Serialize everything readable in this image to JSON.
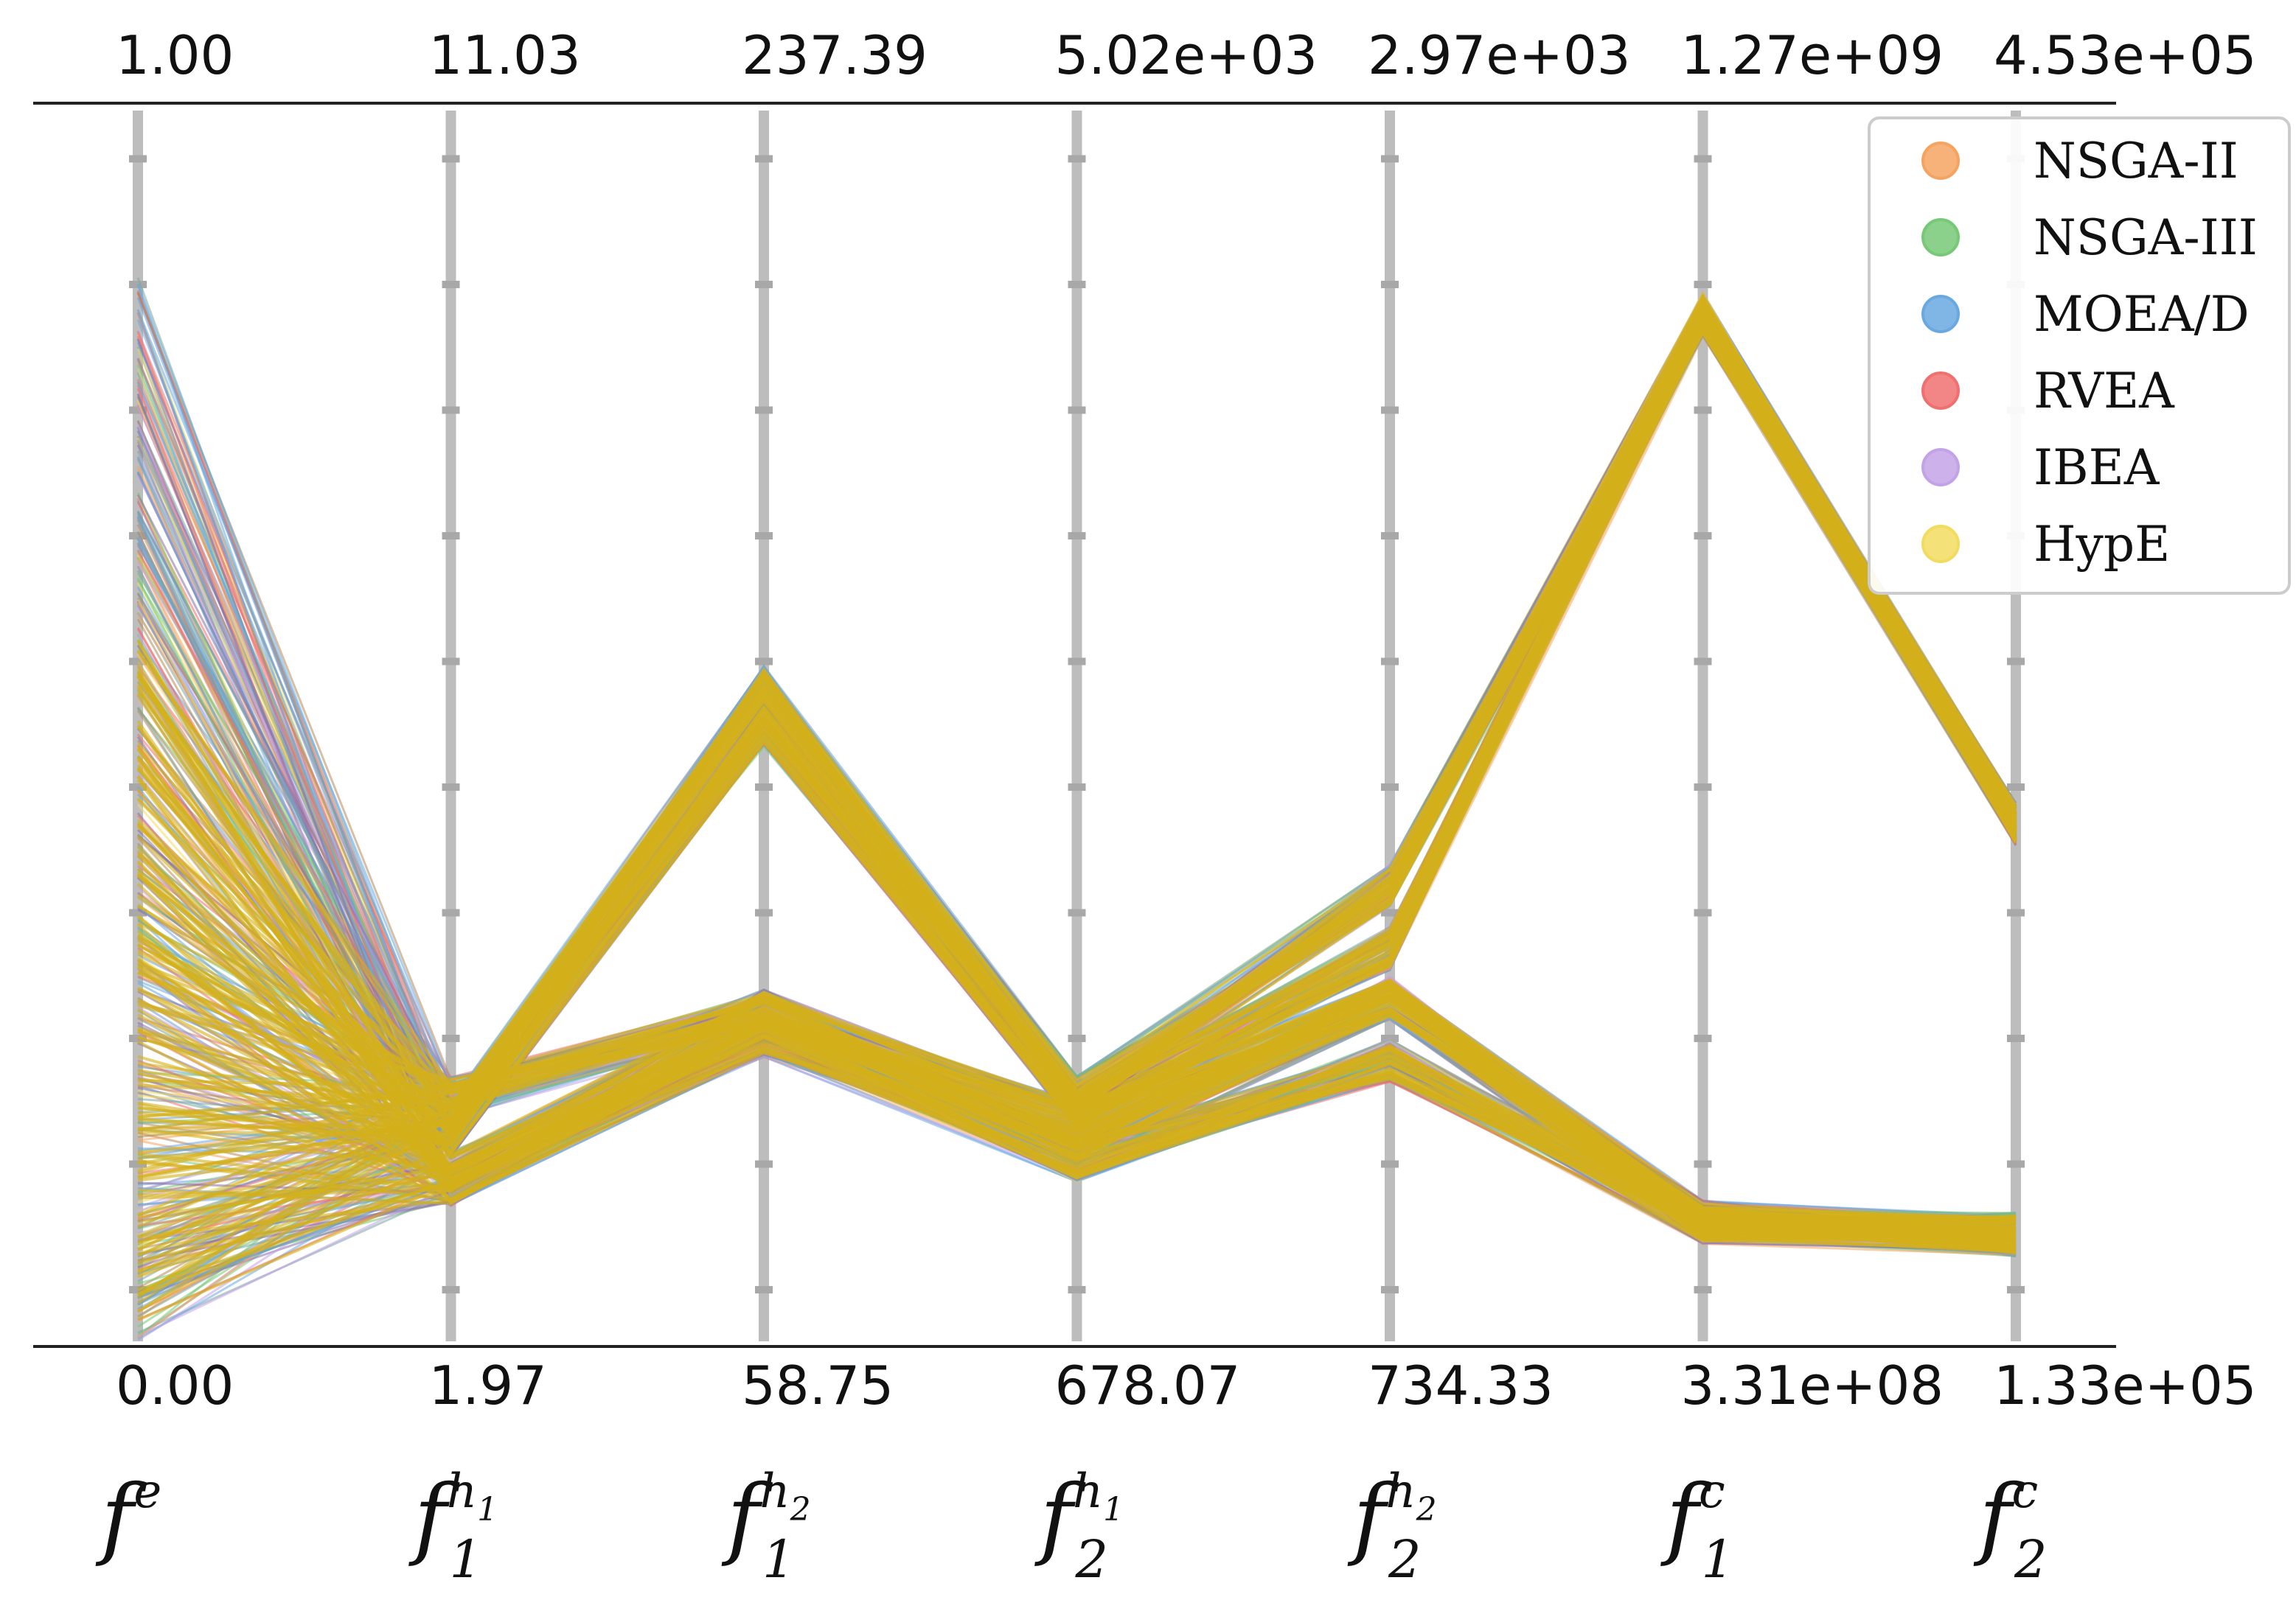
{
  "chart_data": {
    "type": "parallel-coordinates",
    "axes": [
      {
        "id": "fe",
        "name": "f",
        "sup": "e",
        "sub": "",
        "supSub": "",
        "max_label": "1.00",
        "min_label": "0.00"
      },
      {
        "id": "f1h1",
        "name": "f",
        "sup": "h",
        "supSub": "1",
        "sub": "1",
        "max_label": "11.03",
        "min_label": "1.97"
      },
      {
        "id": "f1h2",
        "name": "f",
        "sup": "h",
        "supSub": "2",
        "sub": "1",
        "max_label": "237.39",
        "min_label": "58.75"
      },
      {
        "id": "f2h1",
        "name": "f",
        "sup": "h",
        "supSub": "1",
        "sub": "2",
        "max_label": "5.02e+03",
        "min_label": "678.07"
      },
      {
        "id": "f2h2",
        "name": "f",
        "sup": "h",
        "supSub": "2",
        "sub": "2",
        "max_label": "2.97e+03",
        "min_label": "734.33"
      },
      {
        "id": "f1c",
        "name": "f",
        "sup": "c",
        "supSub": "",
        "sub": "1",
        "max_label": "1.27e+09",
        "min_label": "3.31e+08"
      },
      {
        "id": "f2c",
        "name": "f",
        "sup": "c",
        "supSub": "",
        "sub": "2",
        "max_label": "4.53e+05",
        "min_label": "1.33e+05"
      }
    ],
    "normalized_range": [
      0,
      1
    ],
    "series": [
      {
        "name": "NSGA-II",
        "color": "#f4a460"
      },
      {
        "name": "NSGA-III",
        "color": "#77c877"
      },
      {
        "name": "MOEA/D",
        "color": "#6aa9e0"
      },
      {
        "name": "RVEA",
        "color": "#f07070"
      },
      {
        "name": "IBEA",
        "color": "#c3a3e8"
      },
      {
        "name": "HypE",
        "color": "#f2dc60"
      }
    ],
    "dominant_line_color": "#d4b01a",
    "line_bundles": [
      {
        "normalized_values": [
          0.7,
          0.18,
          0.53,
          0.2,
          0.37,
          0.83,
          0.42
        ]
      },
      {
        "normalized_values": [
          0.5,
          0.17,
          0.5,
          0.19,
          0.32,
          0.83,
          0.42
        ]
      },
      {
        "normalized_values": [
          0.3,
          0.14,
          0.27,
          0.18,
          0.28,
          0.1,
          0.09
        ]
      },
      {
        "normalized_values": [
          0.15,
          0.2,
          0.27,
          0.16,
          0.28,
          0.1,
          0.09
        ]
      },
      {
        "normalized_values": [
          0.08,
          0.13,
          0.25,
          0.15,
          0.23,
          0.1,
          0.09
        ]
      }
    ],
    "legend_position": "top-right",
    "grid": false
  }
}
